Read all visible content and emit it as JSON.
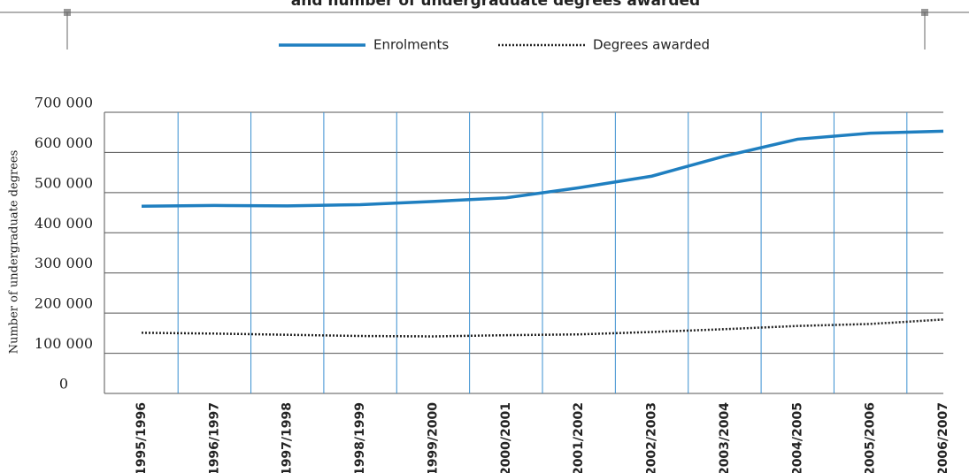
{
  "chart_data": {
    "type": "line",
    "title": "and number of undergraduate degrees awarded",
    "y_label": "Number of undergraduate degrees",
    "categories": [
      "1995/1996",
      "1996/1997",
      "1997/1998",
      "1998/1999",
      "1999/2000",
      "2000/2001",
      "2001/2002",
      "2002/2003",
      "2003/2004",
      "2004/2005",
      "2005/2006",
      "2006/2007"
    ],
    "series": [
      {
        "name": "Enrolments",
        "color": "#1f7fc0",
        "style": "solid",
        "values": [
          466000,
          468000,
          467000,
          470000,
          478000,
          487000,
          512000,
          541000,
          591000,
          633000,
          648000,
          653000
        ]
      },
      {
        "name": "Degrees awarded",
        "color": "#222222",
        "style": "dotted",
        "values": [
          151000,
          149000,
          146000,
          143000,
          142000,
          145000,
          147000,
          153000,
          160000,
          168000,
          173000,
          184000
        ]
      }
    ],
    "ylim": [
      0,
      700000
    ],
    "yticks": [
      {
        "value": 0,
        "label": "0"
      },
      {
        "value": 100000,
        "label": "100 000"
      },
      {
        "value": 200000,
        "label": "200 000"
      },
      {
        "value": 300000,
        "label": "300 000"
      },
      {
        "value": 400000,
        "label": "400 000"
      },
      {
        "value": 500000,
        "label": "500 000"
      },
      {
        "value": 600000,
        "label": "600 000"
      },
      {
        "value": 700000,
        "label": "700 000"
      }
    ],
    "grid": true
  }
}
